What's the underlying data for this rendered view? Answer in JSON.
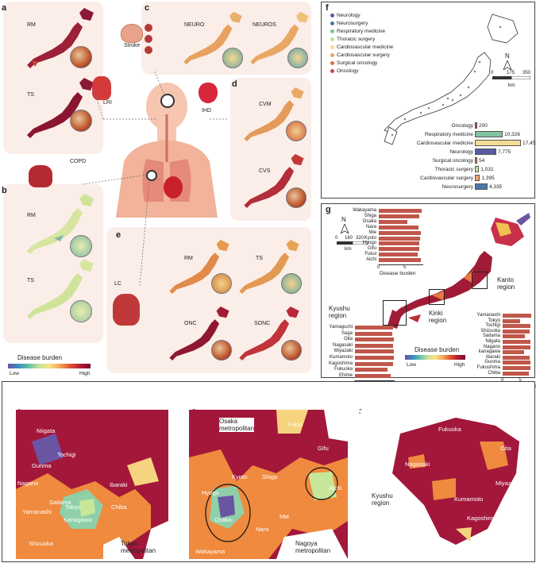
{
  "panels": {
    "a": "a",
    "b": "b",
    "c": "c",
    "d": "d",
    "e": "e",
    "f": "f",
    "g": "g"
  },
  "a_maps": [
    "RM",
    "TS"
  ],
  "b_maps": [
    "RM",
    "TS"
  ],
  "c_maps": [
    "NEURO",
    "NEUROS"
  ],
  "d_maps": [
    "CVM",
    "CVS"
  ],
  "e_maps": [
    "RM",
    "TS",
    "ONC",
    "SONC"
  ],
  "organs": {
    "stroke": "Stroke",
    "lri": "LRI",
    "ihd": "IHD",
    "copd": "COPD",
    "lc": "LC"
  },
  "legend_left": {
    "title": "Disease burden",
    "low": "Low",
    "high": "High"
  },
  "panel_f": {
    "legend": [
      {
        "label": "Neurology",
        "color": "#5b5aa0"
      },
      {
        "label": "Neurosurgery",
        "color": "#4a78a8"
      },
      {
        "label": "Respiratory medicine",
        "color": "#7fc4a0"
      },
      {
        "label": "Thoracic surgery",
        "color": "#c9e08f"
      },
      {
        "label": "Cardiovascular medicine",
        "color": "#f3dc94"
      },
      {
        "label": "Cardiovascular surgery",
        "color": "#f0a06a"
      },
      {
        "label": "Surgical oncology",
        "color": "#e07050"
      },
      {
        "label": "Oncology",
        "color": "#c4485a"
      }
    ],
    "north": "N",
    "scale": [
      "0",
      "175",
      "350"
    ],
    "scale_unit": "km",
    "bars": [
      {
        "label": "Oncology",
        "value": 200,
        "text": "200",
        "color": "#c4485a"
      },
      {
        "label": "Respiratory medicine",
        "value": 10326,
        "text": "10,326",
        "color": "#7fc4a0"
      },
      {
        "label": "Cardiovascular medicine",
        "value": 17453,
        "text": "17,453",
        "color": "#f3dc94"
      },
      {
        "label": "Neurology",
        "value": 7775,
        "text": "7,775",
        "color": "#5b5aa0"
      },
      {
        "label": "Surgical oncology",
        "value": 54,
        "text": "54",
        "color": "#e07050"
      },
      {
        "label": "Thoracic surgery",
        "value": 1031,
        "text": "1,031",
        "color": "#c9e08f"
      },
      {
        "label": "Cardiovascular surgery",
        "value": 1395,
        "text": "1,395",
        "color": "#f0a06a"
      },
      {
        "label": "Neurosurgery",
        "value": 4335,
        "text": "4,335",
        "color": "#4a78a8"
      }
    ]
  },
  "panel_g": {
    "north": "N",
    "scale": [
      "0",
      "160",
      "320"
    ],
    "scale_unit": "km",
    "kinki": {
      "labels": [
        "Wakayama",
        "Shiga",
        "Osaka",
        "Nara",
        "Mie",
        "Kyoto",
        "Hyogo",
        "Gifu",
        "Fukui",
        "Aichi"
      ],
      "values": [
        8.2,
        7.8,
        5.5,
        7.6,
        8.0,
        7.9,
        7.7,
        7.8,
        7.4,
        8.1
      ],
      "axis": [
        "0",
        "5"
      ],
      "xlabel": "Disease burden"
    },
    "kyushu": {
      "labels": [
        "Yamaguchi",
        "Saga",
        "Oita",
        "Nagasaki",
        "Miyazaki",
        "Kumamoto",
        "Kagoshima",
        "Fukuoka",
        "Ehime"
      ],
      "values": [
        8.1,
        8.0,
        8.3,
        8.2,
        8.3,
        8.4,
        8.2,
        6.9,
        7.6
      ],
      "axis": [
        "0",
        "5"
      ],
      "xlabel": "Disease burden"
    },
    "kanto": {
      "labels": [
        "Yamanashi",
        "Tokyo",
        "Tochigi",
        "Shizuoka",
        "Saitama",
        "Niigata",
        "Nagano",
        "kanagawa",
        "Ibaraki",
        "Gunma",
        "Fukushima",
        "Chiba"
      ],
      "values": [
        8.0,
        5.0,
        7.9,
        7.7,
        6.3,
        7.9,
        7.8,
        6.0,
        7.7,
        7.9,
        7.8,
        7.3
      ],
      "axis": [
        "0",
        "5"
      ],
      "xlabel": "Disease burden"
    },
    "regions": {
      "kanto": "Kanto\nregion",
      "kinki": "Kinki\nregion",
      "kyushu": "Kyushu\nregion"
    },
    "legend": {
      "title": "Disease burden",
      "low": "Low",
      "high": "High"
    }
  },
  "bottom": {
    "num1": "1",
    "num2": "2",
    "num3": "3",
    "m1_labels": [
      "Niigata",
      "Gunma",
      "Tochigi",
      "Nagano",
      "Ibaraki",
      "Saitama",
      "Yamanashi",
      "Tokyo",
      "Chiba",
      "Kanagawa",
      "Shizuoka"
    ],
    "m1_caption": "Tokyo\nmetropolitan",
    "m2_labels": [
      "Ishikawa",
      "Fukui",
      "Gifu",
      "Shiga",
      "Kyoto",
      "Hyogo",
      "Osaka",
      "Nara",
      "Mie",
      "Aichi",
      "Wakayama"
    ],
    "m2_osaka": "Osaka\nmetropolitan",
    "m2_nagoya": "Nagoya\nmetropolitan",
    "m3_labels": [
      "Fukuoka",
      "Oita",
      "Nagasaki",
      "Kumamoto",
      "Miyazaki",
      "Kagoshima"
    ],
    "m3_caption": "Kyushu\nregion"
  }
}
